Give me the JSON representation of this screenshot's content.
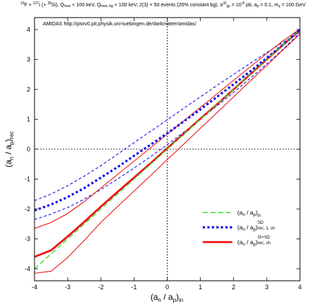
{
  "title": {
    "text_a": "19",
    "text_b": "F + ",
    "text_c": "127",
    "text_d": "I (+ ",
    "text_e": "28",
    "text_f": "Si), Q",
    "text_g": "max",
    "text_h": " < 100 keV, Q",
    "text_i": "max, bg",
    "text_j": " < 100 keV, 2(3) × 50 events (20% constant bg), σ",
    "text_k": "SI",
    "text_l": "χp",
    "text_m": " = 10",
    "text_n": "-8",
    "text_o": " pb, a",
    "text_p": "p",
    "text_q": " = 0.1, m",
    "text_r": "χ",
    "text_s": " = 100 GeV"
  },
  "annotation": "AMIDAS   http://pisrv0.pit.physik.uni-tuebingen.de/darkmatter/amidas/",
  "chart_data": {
    "type": "line",
    "xlabel": "(a_n / a_p)_in",
    "ylabel": "(a_n / a_p)_rec",
    "xlabel_parts": {
      "main": "(a",
      "s1": "n",
      "mid": " / a",
      "s2": "p",
      "close": ")",
      "s3": "in"
    },
    "ylabel_parts": {
      "main": "(a",
      "s1": "n",
      "mid": " / a",
      "s2": "p",
      "close": ")",
      "s3": "rec"
    },
    "xlim": [
      -4,
      4
    ],
    "ylim": [
      -4.4,
      4.4
    ],
    "xticks": [
      -4,
      -3,
      -2,
      -1,
      0,
      1,
      2,
      3,
      4
    ],
    "yticks": [
      -4,
      -3,
      -2,
      -1,
      0,
      1,
      2,
      3,
      4
    ],
    "grid": false,
    "reference_lines": {
      "x": 0,
      "y": 0
    },
    "legend_position": "bottom-right",
    "colors": {
      "in": "#33dd33",
      "sd": "#1111ee",
      "sisd": "#ee1111"
    },
    "legend": [
      {
        "series_key": "in",
        "label_main": "(a",
        "s1": "n",
        "mid": " / a",
        "s2": "p",
        "close": ")",
        "sub": "in",
        "sup": ""
      },
      {
        "series_key": "sd",
        "label_main": "(a",
        "s1": "n",
        "mid": " / a",
        "s2": "p",
        "close": ")",
        "sub": "rec, 1, sh",
        "sup": "SD"
      },
      {
        "series_key": "sisd",
        "label_main": "(a",
        "s1": "n",
        "mid": " / a",
        "s2": "p",
        "close": ")",
        "sub": "rec, sh",
        "sup": "SI+SD"
      }
    ],
    "series": [
      {
        "key": "in",
        "style": "green-dashed",
        "x": [
          -4,
          -3.5,
          -3,
          -2.5,
          -2,
          -1.5,
          -1,
          -0.5,
          0,
          0.5,
          1,
          1.5,
          2,
          2.5,
          3,
          3.5,
          4
        ],
        "y": [
          -4,
          -3.5,
          -3,
          -2.5,
          -2,
          -1.5,
          -1,
          -0.5,
          0,
          0.5,
          1,
          1.5,
          2,
          2.5,
          3,
          3.5,
          4
        ]
      },
      {
        "key": "sd",
        "style": "blue-thick-dotted",
        "x": [
          -4,
          -3.5,
          -3,
          -2.5,
          -2,
          -1.5,
          -1,
          -0.5,
          0,
          0.5,
          1,
          1.5,
          2,
          2.5,
          3,
          3.5,
          4
        ],
        "y": [
          -2.05,
          -1.85,
          -1.6,
          -1.3,
          -0.95,
          -0.6,
          -0.22,
          0.15,
          0.53,
          0.93,
          1.33,
          1.75,
          2.17,
          2.6,
          3.05,
          3.5,
          4.0
        ]
      },
      {
        "key": "sd_upper",
        "style": "blue-thin-dashed",
        "x": [
          -4,
          -3.5,
          -3,
          -2.5,
          -2,
          -1.5,
          -1,
          -0.5,
          0,
          0.5,
          1,
          1.5,
          2,
          2.5,
          3,
          3.5,
          4
        ],
        "y": [
          -1.72,
          -1.5,
          -1.22,
          -0.9,
          -0.55,
          -0.17,
          0.22,
          0.6,
          0.98,
          1.37,
          1.75,
          2.13,
          2.5,
          2.87,
          3.23,
          3.58,
          3.92
        ]
      },
      {
        "key": "sd_lower",
        "style": "blue-thin-dashed",
        "x": [
          -4,
          -3.5,
          -3,
          -2.5,
          -2,
          -1.5,
          -1,
          -0.5,
          0,
          0.5,
          1,
          1.5,
          2,
          2.5,
          3,
          3.5,
          4
        ],
        "y": [
          -2.35,
          -2.17,
          -1.95,
          -1.67,
          -1.35,
          -1.0,
          -0.63,
          -0.25,
          0.15,
          0.57,
          1.0,
          1.45,
          1.9,
          2.37,
          2.85,
          3.35,
          3.9
        ]
      },
      {
        "key": "sisd",
        "style": "red-thick-solid",
        "x": [
          -4,
          -3.5,
          -3,
          -2.5,
          -2,
          -1.5,
          -1,
          -0.5,
          0,
          0.5,
          1,
          1.5,
          2,
          2.5,
          3,
          3.5,
          4
        ],
        "y": [
          -3.6,
          -3.38,
          -2.92,
          -2.43,
          -1.92,
          -1.43,
          -0.95,
          -0.47,
          0.03,
          0.52,
          1.02,
          1.5,
          2.0,
          2.5,
          3.0,
          3.5,
          3.98
        ]
      },
      {
        "key": "sisd_upper",
        "style": "red-thin-solid",
        "x": [
          -4,
          -3.5,
          -3,
          -2.5,
          -2,
          -1.5,
          -1,
          -0.5,
          0,
          0.5,
          1,
          1.5,
          2,
          2.5,
          3,
          3.5,
          4
        ],
        "y": [
          -2.65,
          -2.45,
          -2.15,
          -1.75,
          -1.3,
          -0.85,
          -0.4,
          0.05,
          0.5,
          0.95,
          1.4,
          1.85,
          2.3,
          2.75,
          3.2,
          3.63,
          4.02
        ]
      },
      {
        "key": "sisd_lower",
        "style": "red-thin-solid",
        "x": [
          -4,
          -3.5,
          -3,
          -2.5,
          -2,
          -1.5,
          -1,
          -0.5,
          0,
          0.5,
          1,
          1.5,
          2,
          2.5,
          3,
          3.5,
          4
        ],
        "y": [
          -4.15,
          -4.08,
          -3.62,
          -3.05,
          -2.45,
          -1.92,
          -1.4,
          -0.88,
          -0.35,
          0.17,
          0.7,
          1.22,
          1.75,
          2.28,
          2.8,
          3.33,
          3.85
        ]
      }
    ]
  }
}
